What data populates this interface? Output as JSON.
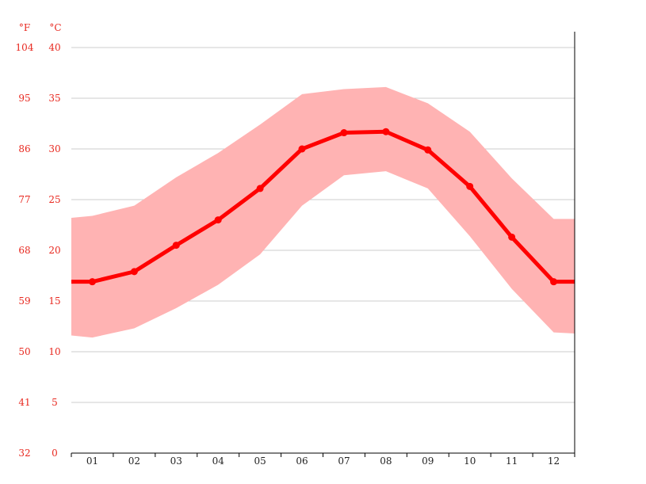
{
  "chart_data": {
    "type": "line",
    "title": "",
    "xlabel": "",
    "ylabel": "",
    "categories": [
      "01",
      "02",
      "03",
      "04",
      "05",
      "06",
      "07",
      "08",
      "09",
      "10",
      "11",
      "12"
    ],
    "y_unit_left": "°F",
    "y_unit_right": "°C",
    "yticks_c": [
      "0",
      "5",
      "10",
      "15",
      "20",
      "25",
      "30",
      "35",
      "40"
    ],
    "yticks_f": [
      "32",
      "41",
      "50",
      "59",
      "68",
      "77",
      "86",
      "95",
      "104"
    ],
    "ylim": [
      0,
      40
    ],
    "grid": true,
    "series": [
      {
        "kind": "mean",
        "values": [
          16.9,
          17.9,
          20.5,
          23.0,
          26.1,
          30.0,
          31.6,
          31.7,
          29.9,
          26.3,
          21.3,
          16.9
        ]
      },
      {
        "kind": "max",
        "values": [
          23.4,
          24.4,
          27.2,
          29.6,
          32.4,
          35.4,
          35.9,
          36.1,
          34.5,
          31.7,
          27.1,
          23.1
        ]
      },
      {
        "kind": "min",
        "values": [
          11.4,
          12.3,
          14.3,
          16.6,
          19.6,
          24.4,
          27.4,
          27.8,
          26.1,
          21.4,
          16.2,
          11.9
        ]
      }
    ],
    "colors": {
      "line": "#ff0000",
      "band": "#ffb3b3",
      "axis_text": "#e8281f",
      "grid": "#cccccc"
    }
  }
}
